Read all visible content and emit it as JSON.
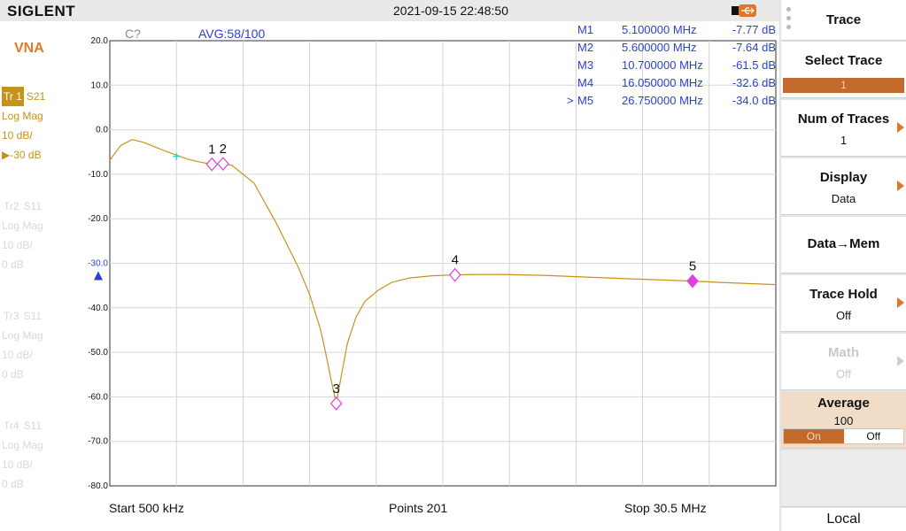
{
  "header": {
    "brand": "SIGLENT",
    "datetime": "2021-09-15 22:48:50",
    "usb_icon": "usb-icon"
  },
  "left_panel": {
    "mode": "VNA",
    "traces": [
      {
        "tag": "Tr 1",
        "param": "S21",
        "format": "Log Mag",
        "scale": "10 dB/",
        "ref": "▶-30 dB",
        "active": true
      },
      {
        "tag": "Tr2",
        "param": "S11",
        "format": "Log Mag",
        "scale": "10 dB/",
        "ref": "0 dB",
        "active": false
      },
      {
        "tag": "Tr3",
        "param": "S11",
        "format": "Log Mag",
        "scale": "10 dB/",
        "ref": "0 dB",
        "active": false
      },
      {
        "tag": "Tr4",
        "param": "S11",
        "format": "Log Mag",
        "scale": "10 dB/",
        "ref": "0 dB",
        "active": false
      }
    ]
  },
  "plot_header": {
    "cal_status": "C?",
    "avg": "AVG:58/100"
  },
  "markers": [
    {
      "id": "M1",
      "freq": "5.100000 MHz",
      "value": "-7.77 dB",
      "active": false
    },
    {
      "id": "M2",
      "freq": "5.600000 MHz",
      "value": "-7.64 dB",
      "active": false
    },
    {
      "id": "M3",
      "freq": "10.700000 MHz",
      "value": "-61.5 dB",
      "active": false
    },
    {
      "id": "M4",
      "freq": "16.050000 MHz",
      "value": "-32.6 dB",
      "active": false
    },
    {
      "id": "M5",
      "freq": "26.750000 MHz",
      "value": "-34.0 dB",
      "active": true
    }
  ],
  "active_marker_symbol": ">",
  "chart_data": {
    "type": "line",
    "x_unit": "MHz",
    "xlim": [
      0.5,
      30.5
    ],
    "ylim": [
      -80,
      20
    ],
    "y_ticks": [
      "20.0",
      "10.0",
      "0.0",
      "-10.0",
      "-20.0",
      "-30.0",
      "-40.0",
      "-50.0",
      "-60.0",
      "-70.0",
      "-80.0"
    ],
    "grid": true,
    "reference_level": -30,
    "series": [
      {
        "color": "#c7921a",
        "x": [
          0.5,
          1.0,
          1.5,
          2.0,
          2.5,
          3.0,
          3.5,
          4.0,
          4.5,
          5.1,
          5.6,
          6.0,
          7.0,
          8.0,
          9.0,
          9.5,
          10.0,
          10.3,
          10.5,
          10.7,
          10.9,
          11.2,
          11.6,
          12.0,
          12.6,
          13.2,
          14.0,
          15.0,
          16.05,
          17.0,
          18.0,
          20.0,
          22.0,
          24.0,
          26.75,
          28.0,
          30.5
        ],
        "y": [
          -6.8,
          -3.5,
          -2.2,
          -2.8,
          -3.8,
          -4.8,
          -5.7,
          -6.6,
          -7.2,
          -7.77,
          -7.64,
          -8.0,
          -12.0,
          -21.0,
          -31.0,
          -37.0,
          -45.0,
          -52.0,
          -57.0,
          -61.5,
          -56.0,
          -48.0,
          -42.0,
          -38.5,
          -36.0,
          -34.3,
          -33.3,
          -32.8,
          -32.6,
          -32.5,
          -32.5,
          -32.7,
          -33.1,
          -33.5,
          -34.0,
          -34.3,
          -34.8
        ]
      }
    ],
    "marker_points": [
      {
        "label": "1",
        "x": 5.1,
        "y": -7.77
      },
      {
        "label": "2",
        "x": 5.6,
        "y": -7.64
      },
      {
        "label": "3",
        "x": 10.7,
        "y": -61.5
      },
      {
        "label": "4",
        "x": 16.05,
        "y": -32.6
      },
      {
        "label": "5",
        "x": 26.75,
        "y": -34.0
      }
    ],
    "aux_marker": {
      "x": 3.5,
      "y": -6.0,
      "color": "#33cccc"
    }
  },
  "footer": {
    "start": "Start  500 kHz",
    "points": "Points  201",
    "stop": "Stop  30.5 MHz"
  },
  "softkeys": {
    "menu_title": "Trace",
    "select_trace": {
      "label": "Select Trace",
      "value": "1"
    },
    "num_traces": {
      "label": "Num of Traces",
      "value": "1"
    },
    "display": {
      "label": "Display",
      "value": "Data"
    },
    "data_mem": {
      "label": "Data→Mem"
    },
    "trace_hold": {
      "label": "Trace Hold",
      "value": "Off"
    },
    "math": {
      "label": "Math",
      "value": "Off"
    },
    "average": {
      "label": "Average",
      "value": "100",
      "on": "On",
      "off": "Off"
    },
    "local": "Local"
  },
  "colors": {
    "trace": "#c7921a",
    "marker": "#e040e0",
    "marker_table": "#2b3fd6",
    "softkey_accent": "#c26a2c"
  }
}
